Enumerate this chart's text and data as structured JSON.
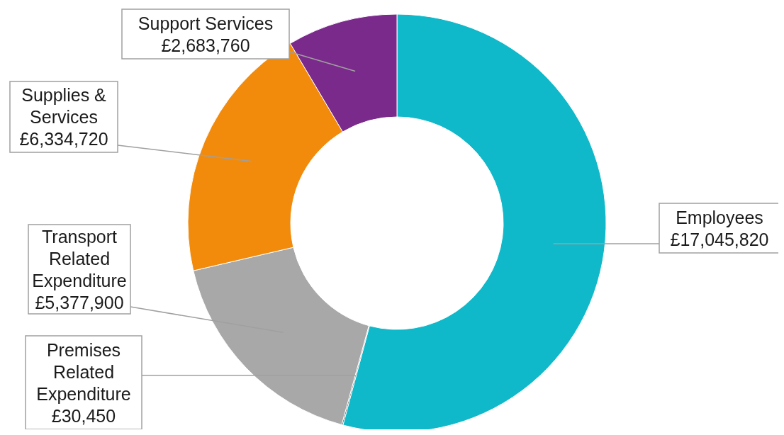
{
  "chart_data": {
    "type": "donut",
    "categories": [
      "Employees",
      "Premises Related Expenditure",
      "Transport Related Expenditure",
      "Supplies & Services",
      "Support Services"
    ],
    "values": [
      17045820,
      30450,
      5377900,
      6334720,
      2683760
    ],
    "colors": [
      "#10b9c9",
      "#5a5a5a",
      "#a8a8a8",
      "#f28b0c",
      "#7a2a8a"
    ],
    "value_labels": [
      "£17,045,820",
      "£30,450",
      "£5,377,900",
      "£6,334,720",
      "£2,683,760"
    ],
    "legend": false
  }
}
